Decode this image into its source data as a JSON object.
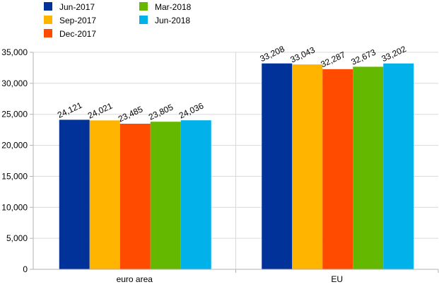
{
  "chart_data": {
    "type": "bar",
    "categories": [
      "euro area",
      "EU"
    ],
    "series": [
      {
        "name": "Jun-2017",
        "color": "#003299",
        "values": [
          24121,
          33208
        ]
      },
      {
        "name": "Sep-2017",
        "color": "#FFB400",
        "values": [
          24021,
          33043
        ]
      },
      {
        "name": "Dec-2017",
        "color": "#FF4B00",
        "values": [
          23485,
          32287
        ]
      },
      {
        "name": "Mar-2018",
        "color": "#65B800",
        "values": [
          23805,
          32673
        ]
      },
      {
        "name": "Jun-2018",
        "color": "#00B1EA",
        "values": [
          24036,
          33202
        ]
      }
    ],
    "data_labels": [
      [
        "24,121",
        "33,208"
      ],
      [
        "24,021",
        "33,043"
      ],
      [
        "23,485",
        "32,287"
      ],
      [
        "23,805",
        "32,673"
      ],
      [
        "24,036",
        "33,202"
      ]
    ],
    "y_tick_labels": [
      "0",
      "5,000",
      "10,000",
      "15,000",
      "20,000",
      "25,000",
      "30,000",
      "35,000"
    ],
    "y_ticks": [
      0,
      5000,
      10000,
      15000,
      20000,
      25000,
      30000,
      35000
    ],
    "ylim": [
      0,
      35000
    ],
    "title": "",
    "xlabel": "",
    "ylabel": "",
    "grid": "horizontal",
    "legend_position": "top"
  }
}
